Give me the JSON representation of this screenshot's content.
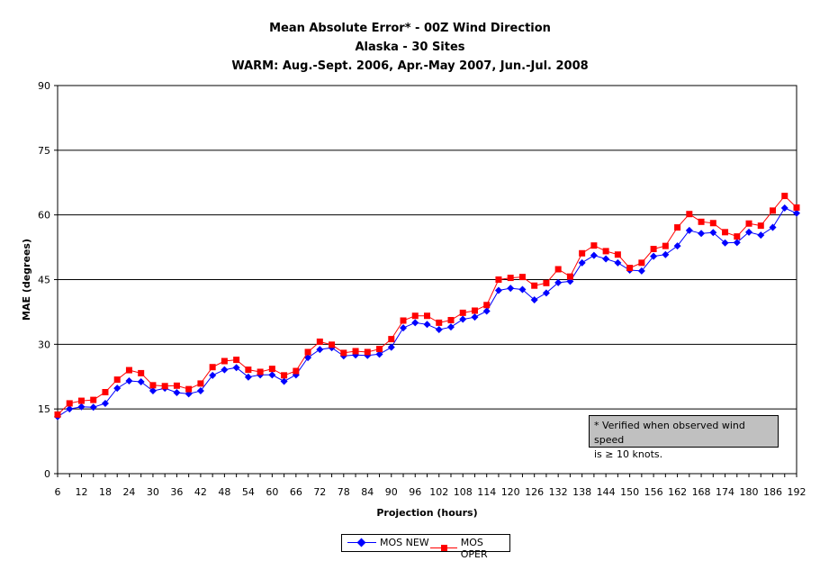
{
  "titles": {
    "line1": "Mean Absolute Error* - 00Z Wind Direction",
    "line2": "Alaska - 30 Sites",
    "line3": "WARM: Aug.-Sept. 2006, Apr.-May 2007, Jun.-Jul. 2008"
  },
  "note": {
    "line1": "* Verified when observed wind speed",
    "line2": "is ≥ 10 knots."
  },
  "chart_data": {
    "type": "line",
    "xlabel": "Projection (hours)",
    "ylabel": "MAE (degrees)",
    "x_range": [
      6,
      192
    ],
    "ylim": [
      0,
      90
    ],
    "yticks": [
      0,
      15,
      30,
      45,
      60,
      75,
      90
    ],
    "xticks": [
      6,
      12,
      18,
      24,
      30,
      36,
      42,
      48,
      54,
      60,
      66,
      72,
      78,
      84,
      90,
      96,
      102,
      108,
      114,
      120,
      126,
      132,
      138,
      144,
      150,
      156,
      162,
      168,
      174,
      180,
      186,
      192
    ],
    "grid": "horizontal",
    "legend_position": "bottom-center",
    "x": [
      6,
      9,
      12,
      15,
      18,
      21,
      24,
      27,
      30,
      33,
      36,
      39,
      42,
      45,
      48,
      51,
      54,
      57,
      60,
      63,
      66,
      69,
      72,
      75,
      78,
      81,
      84,
      87,
      90,
      93,
      96,
      99,
      102,
      105,
      108,
      111,
      114,
      117,
      120,
      123,
      126,
      129,
      132,
      135,
      138,
      141,
      144,
      147,
      150,
      153,
      156,
      159,
      162,
      165,
      168,
      171,
      174,
      177,
      180,
      183,
      186,
      189,
      192
    ],
    "series": [
      {
        "name": "MOS NEW",
        "color": "#0000ff",
        "marker": "diamond",
        "values": [
          13.2,
          15.0,
          15.5,
          15.4,
          16.3,
          19.8,
          21.5,
          21.3,
          19.2,
          19.8,
          18.8,
          18.5,
          19.2,
          22.8,
          24.1,
          24.6,
          22.4,
          22.9,
          22.9,
          21.4,
          22.9,
          26.9,
          28.8,
          29.2,
          27.3,
          27.5,
          27.4,
          27.7,
          29.3,
          33.8,
          35.0,
          34.6,
          33.4,
          34.0,
          35.8,
          36.3,
          37.7,
          42.5,
          43.0,
          42.7,
          40.3,
          41.9,
          44.3,
          44.6,
          48.9,
          50.6,
          49.8,
          48.9,
          47.2,
          47.0,
          50.4,
          50.8,
          52.8,
          56.4,
          55.7,
          55.9,
          53.5,
          53.6,
          56.0,
          55.3,
          57.1,
          61.6,
          60.4
        ]
      },
      {
        "name": "MOS OPER",
        "color": "#ff0000",
        "marker": "square",
        "values": [
          13.7,
          16.3,
          16.9,
          17.1,
          18.9,
          21.8,
          24.0,
          23.3,
          20.5,
          20.3,
          20.4,
          19.6,
          20.9,
          24.7,
          26.1,
          26.4,
          24.1,
          23.6,
          24.3,
          22.8,
          23.8,
          28.2,
          30.6,
          29.9,
          28.0,
          28.4,
          28.2,
          28.9,
          31.2,
          35.5,
          36.6,
          36.6,
          35.0,
          35.6,
          37.3,
          37.8,
          39.1,
          45.0,
          45.4,
          45.6,
          43.6,
          44.2,
          47.4,
          45.7,
          51.1,
          52.9,
          51.6,
          50.8,
          47.7,
          48.9,
          52.1,
          52.8,
          57.1,
          60.2,
          58.4,
          58.1,
          56.0,
          55.0,
          58.0,
          57.5,
          61.0,
          64.4,
          61.7
        ]
      }
    ]
  }
}
